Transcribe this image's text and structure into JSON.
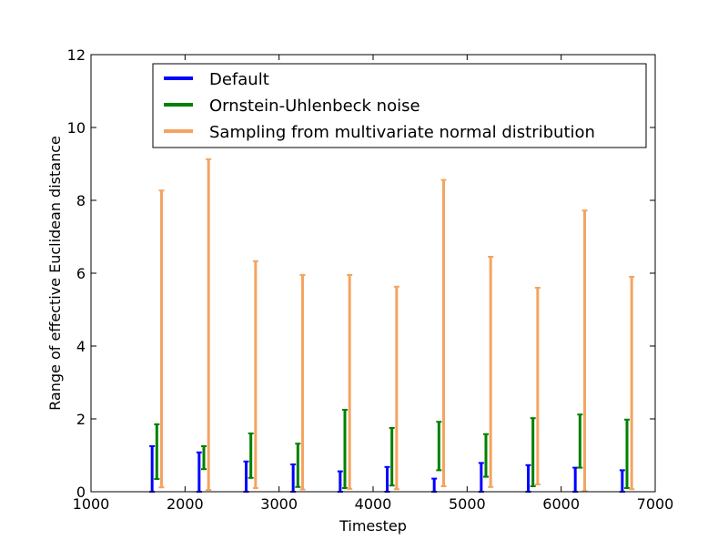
{
  "chart_data": {
    "type": "errorbar",
    "xlabel": "Timestep",
    "ylabel": "Range of effective Euclidean distance",
    "xlim": [
      1000,
      7000
    ],
    "ylim": [
      0,
      12
    ],
    "xticks": [
      1000,
      2000,
      3000,
      4000,
      5000,
      6000,
      7000
    ],
    "yticks": [
      0,
      2,
      4,
      6,
      8,
      10,
      12
    ],
    "grid": false,
    "legend_position": "top-center",
    "x": [
      1700,
      2200,
      2700,
      3200,
      3700,
      4200,
      4700,
      5200,
      5700,
      6200,
      6700
    ],
    "series": [
      {
        "name": "Default",
        "color": "#0000ff",
        "x_offset": -50,
        "ranges": [
          [
            0.0,
            1.25
          ],
          [
            0.0,
            1.08
          ],
          [
            0.0,
            0.83
          ],
          [
            0.0,
            0.75
          ],
          [
            0.0,
            0.56
          ],
          [
            0.0,
            0.68
          ],
          [
            0.0,
            0.36
          ],
          [
            0.0,
            0.79
          ],
          [
            0.0,
            0.73
          ],
          [
            0.0,
            0.66
          ],
          [
            0.0,
            0.59
          ]
        ]
      },
      {
        "name": "Ornstein-Uhlenbeck noise",
        "color": "#008000",
        "x_offset": 0,
        "ranges": [
          [
            0.35,
            1.85
          ],
          [
            0.62,
            1.25
          ],
          [
            0.38,
            1.6
          ],
          [
            0.13,
            1.32
          ],
          [
            0.1,
            2.25
          ],
          [
            0.17,
            1.75
          ],
          [
            0.59,
            1.92
          ],
          [
            0.41,
            1.58
          ],
          [
            0.15,
            2.02
          ],
          [
            0.66,
            2.12
          ],
          [
            0.1,
            1.98
          ]
        ]
      },
      {
        "name": "Sampling from multivariate normal distribution",
        "color": "#f4a460",
        "x_offset": 50,
        "ranges": [
          [
            0.12,
            8.27
          ],
          [
            0.05,
            9.13
          ],
          [
            0.1,
            6.33
          ],
          [
            0.06,
            5.95
          ],
          [
            0.08,
            5.95
          ],
          [
            0.07,
            5.63
          ],
          [
            0.15,
            8.56
          ],
          [
            0.13,
            6.45
          ],
          [
            0.2,
            5.6
          ],
          [
            0.02,
            7.72
          ],
          [
            0.07,
            5.9
          ]
        ]
      }
    ]
  }
}
